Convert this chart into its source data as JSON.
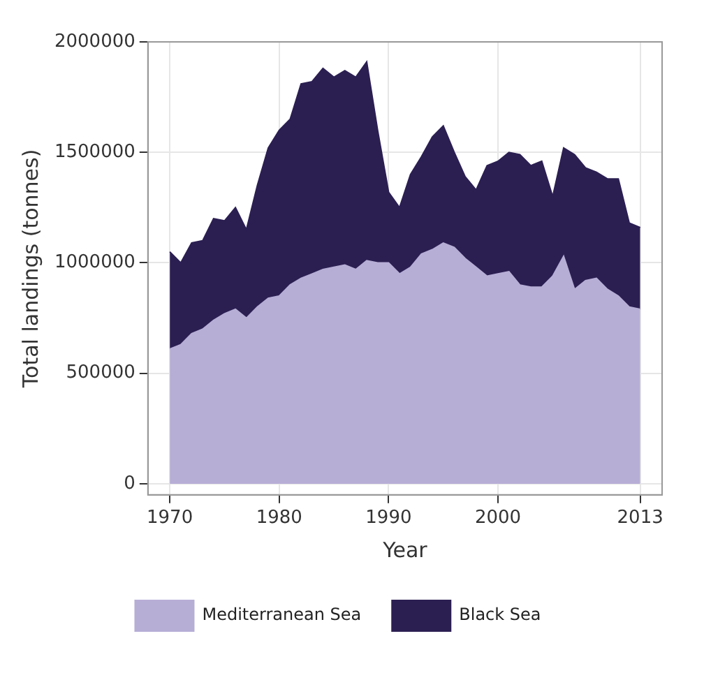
{
  "chart_data": {
    "type": "area",
    "stacked": true,
    "xlabel": "Year",
    "ylabel": "Total landings (tonnes)",
    "x": [
      1970,
      1971,
      1972,
      1973,
      1974,
      1975,
      1976,
      1977,
      1978,
      1979,
      1980,
      1981,
      1982,
      1983,
      1984,
      1985,
      1986,
      1987,
      1988,
      1989,
      1990,
      1991,
      1992,
      1993,
      1994,
      1995,
      1996,
      1997,
      1998,
      1999,
      2000,
      2001,
      2002,
      2003,
      2004,
      2005,
      2006,
      2007,
      2008,
      2009,
      2010,
      2011,
      2012,
      2013
    ],
    "series": [
      {
        "name": "Mediterranean Sea",
        "color": "#b7aed6",
        "values": [
          610000,
          630000,
          680000,
          700000,
          740000,
          770000,
          790000,
          750000,
          800000,
          840000,
          850000,
          900000,
          930000,
          950000,
          970000,
          980000,
          990000,
          970000,
          1010000,
          1000000,
          1000000,
          950000,
          980000,
          1040000,
          1060000,
          1090000,
          1070000,
          1020000,
          980000,
          940000,
          950000,
          960000,
          900000,
          890000,
          890000,
          940000,
          1030000,
          880000,
          920000,
          930000,
          880000,
          850000,
          800000,
          790000
        ]
      },
      {
        "name": "Black Sea",
        "color": "#2b1f52",
        "values": [
          440000,
          370000,
          410000,
          400000,
          460000,
          420000,
          460000,
          400000,
          550000,
          680000,
          750000,
          750000,
          880000,
          870000,
          910000,
          860000,
          880000,
          870000,
          900000,
          600000,
          320000,
          300000,
          420000,
          440000,
          510000,
          530000,
          430000,
          370000,
          350000,
          500000,
          510000,
          540000,
          590000,
          550000,
          570000,
          360000,
          490000,
          610000,
          510000,
          480000,
          500000,
          530000,
          380000,
          370000
        ]
      }
    ],
    "xlim": [
      1968,
      2015
    ],
    "xticks": [
      1970,
      1980,
      1990,
      2000,
      2013
    ],
    "ylim": [
      -50000,
      2000000
    ],
    "yticks": [
      0,
      500000,
      1000000,
      1500000,
      2000000
    ],
    "grid": true,
    "legend": "bottom"
  }
}
